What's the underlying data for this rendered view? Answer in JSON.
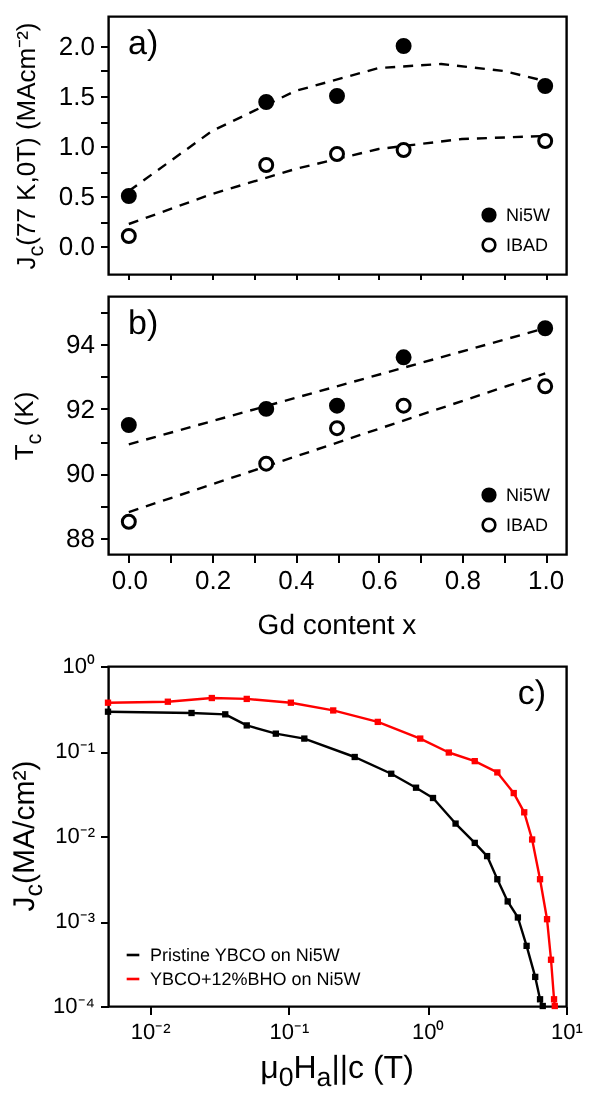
{
  "chart_data": [
    {
      "type": "scatter",
      "annotations": [
        "a)"
      ],
      "ylabel": "J$_{c}$(77 K,0T) (MAcm⁻²)",
      "xlim": [
        -0.05,
        1.05
      ],
      "ylim": [
        -0.28,
        2.3
      ],
      "xticks": [
        {
          "value": 0,
          "label": null
        },
        {
          "value": 0.1,
          "label": null
        },
        {
          "value": 0.2,
          "label": null
        },
        {
          "value": 0.3,
          "label": null
        },
        {
          "value": 0.4,
          "label": null
        },
        {
          "value": 0.5,
          "label": null
        },
        {
          "value": 0.6,
          "label": null
        },
        {
          "value": 0.7,
          "label": null
        },
        {
          "value": 0.8,
          "label": null
        },
        {
          "value": 0.9,
          "label": null
        },
        {
          "value": 1,
          "label": null
        }
      ],
      "yticks": [
        {
          "value": 0,
          "label": "0.0"
        },
        {
          "value": 0.25,
          "label": null
        },
        0.5,
        {
          "value": 0.75,
          "label": null
        },
        {
          "value": 1,
          "label": "1.0"
        },
        {
          "value": 1.25,
          "label": null
        },
        1.5,
        {
          "value": 1.75,
          "label": null
        },
        {
          "value": 2,
          "label": "2.0"
        }
      ],
      "tick_labels": "y",
      "marker": "circle",
      "line_style": "dashed",
      "legend": "bottom right",
      "x": [
        0,
        0.33,
        0.5,
        0.66,
        1.0
      ],
      "series": [
        {
          "name": "Ni5W",
          "color": "#000000",
          "values": [
            0.5,
            1.44,
            1.5,
            2.0,
            1.6
          ]
        },
        {
          "name": "IBAD",
          "color": "#000000",
          "values": [
            0.1,
            0.81,
            0.92,
            0.96,
            1.05
          ]
        },
        {
          "type": "line",
          "marker": "none",
          "color": "#000000",
          "x": [
            0,
            0.2,
            0.4,
            0.6,
            0.75,
            0.9,
            1.0
          ],
          "values": [
            0.55,
            1.15,
            1.55,
            1.78,
            1.82,
            1.75,
            1.65
          ]
        },
        {
          "type": "line",
          "marker": "none",
          "color": "#000000",
          "x": [
            0,
            0.2,
            0.4,
            0.6,
            0.8,
            1.0
          ],
          "values": [
            0.22,
            0.52,
            0.77,
            0.97,
            1.07,
            1.1
          ]
        }
      ]
    },
    {
      "type": "scatter",
      "annotations": [
        "b)"
      ],
      "xlabel": "Gd content x",
      "ylabel": "T$_{c}$ (K)",
      "xlim": [
        -0.05,
        1.05
      ],
      "ylim": [
        87.5,
        95.5
      ],
      "xticks": [
        {
          "value": 0,
          "label": "0.0"
        },
        {
          "value": 0.1,
          "label": null
        },
        0.2,
        {
          "value": 0.3,
          "label": null
        },
        0.4,
        {
          "value": 0.5,
          "label": null
        },
        0.6,
        {
          "value": 0.7,
          "label": null
        },
        0.8,
        {
          "value": 0.9,
          "label": null
        },
        {
          "value": 1,
          "label": "1.0"
        }
      ],
      "yticks": [
        88,
        {
          "value": 89,
          "label": null
        },
        90,
        {
          "value": 91,
          "label": null
        },
        92,
        {
          "value": 93,
          "label": null
        },
        94,
        {
          "value": 95,
          "label": null
        }
      ],
      "marker": "circle",
      "line_style": "dashed",
      "legend": "bottom right",
      "x": [
        0,
        0.33,
        0.5,
        0.66,
        1.0
      ],
      "series": [
        {
          "name": "Ni5W",
          "color": "#000000",
          "values": [
            91.5,
            92.0,
            92.1,
            93.6,
            94.5
          ]
        },
        {
          "name": "IBAD",
          "color": "#000000",
          "values": [
            88.5,
            90.3,
            91.4,
            92.1,
            92.7
          ]
        },
        {
          "type": "line",
          "marker": "none",
          "color": "#000000",
          "x": [
            0,
            1.0
          ],
          "values": [
            90.9,
            94.5
          ]
        },
        {
          "type": "line",
          "marker": "none",
          "color": "#000000",
          "x": [
            0,
            1.0
          ],
          "values": [
            88.8,
            93.1
          ]
        }
      ]
    },
    {
      "type": "line",
      "annotations": [
        "c)"
      ],
      "xlabel": "μ$_{0}$H$_{a}$||c (T)",
      "ylabel": "J$_{c}$(MA/cm²)",
      "log": "xy",
      "xlim": [
        0.005,
        10
      ],
      "ylim": [
        0.0001,
        1
      ],
      "xticks": [
        {
          "value": 0.01,
          "label": "10⁻²"
        },
        {
          "value": 0.1,
          "label": "10⁻¹"
        },
        {
          "value": 1,
          "label": "10⁰"
        },
        {
          "value": 10,
          "label": "10¹"
        }
      ],
      "yticks": [
        {
          "value": 0.0001,
          "label": "10⁻⁴"
        },
        {
          "value": 0.001,
          "label": "10⁻³"
        },
        {
          "value": 0.01,
          "label": "10⁻²"
        },
        {
          "value": 0.1,
          "label": "10⁻¹"
        },
        {
          "value": 1,
          "label": "10⁰"
        }
      ],
      "marker": "square",
      "line_style": "solid",
      "legend": "bottom left",
      "series": [
        {
          "name": "Pristine YBCO on Ni5W",
          "color": "#000000",
          "x": [
            0.005,
            0.02,
            0.035,
            0.05,
            0.081,
            0.13,
            0.3,
            0.55,
            0.83,
            1.1,
            1.6,
            2.2,
            2.7,
            3.2,
            3.8,
            4.5,
            5.2,
            6.0,
            6.5,
            6.8
          ],
          "values": [
            0.29,
            0.28,
            0.27,
            0.2,
            0.16,
            0.14,
            0.085,
            0.054,
            0.037,
            0.028,
            0.014,
            0.0083,
            0.0058,
            0.0031,
            0.0017,
            0.0011,
            0.00051,
            0.00022,
            0.00012,
            0.0001
          ]
        },
        {
          "name": "YBCO+12%BHO on Ni5W",
          "color": "#ff0000",
          "x": [
            0.005,
            0.0135,
            0.028,
            0.05,
            0.104,
            0.21,
            0.44,
            0.89,
            1.43,
            2.2,
            3.2,
            4.2,
            5.0,
            5.7,
            6.5,
            7.3,
            7.8,
            8.2,
            8.3
          ],
          "values": [
            0.37,
            0.38,
            0.42,
            0.41,
            0.37,
            0.3,
            0.22,
            0.14,
            0.096,
            0.076,
            0.056,
            0.032,
            0.019,
            0.0091,
            0.0031,
            0.00105,
            0.00035,
            0.00012,
            0.0001
          ]
        }
      ]
    }
  ]
}
